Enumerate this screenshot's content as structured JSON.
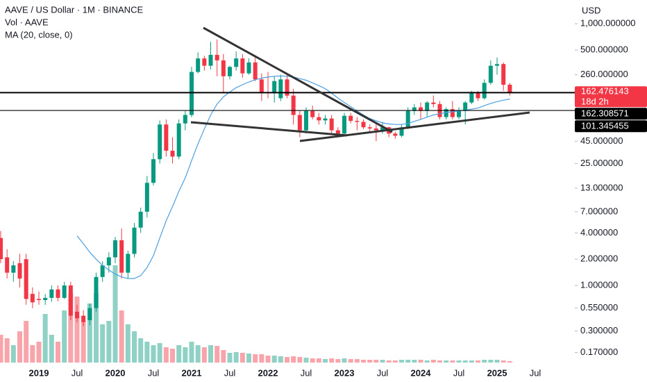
{
  "chart_data": {
    "type": "candlestick",
    "title": "AAVE / US Dollar · 1M · BINANCE",
    "indicators": [
      "Vol · AAVE",
      "MA (20, close, 0)"
    ],
    "currency": "USD",
    "log_scale": true,
    "up_color": "#089981",
    "down_color": "#f23645",
    "categories": [
      null,
      null,
      null,
      null,
      null,
      null,
      "2019",
      null,
      null,
      null,
      null,
      null,
      "Jul",
      null,
      null,
      null,
      null,
      null,
      "2020",
      null,
      null,
      null,
      null,
      null,
      "Jul",
      null,
      null,
      null,
      null,
      null,
      "2021",
      null,
      null,
      null,
      null,
      null,
      "Jul",
      null,
      null,
      null,
      null,
      null,
      "2022",
      null,
      null,
      null,
      null,
      null,
      "Jul",
      null,
      null,
      null,
      null,
      null,
      "2023",
      null,
      null,
      null,
      null,
      null,
      "Jul",
      null,
      null,
      null,
      null,
      null,
      "2024",
      null,
      null,
      null,
      null,
      null,
      "Jul",
      null,
      null,
      null,
      null,
      null,
      "2025",
      null,
      null,
      null,
      null,
      null,
      "Jul"
    ],
    "open": [
      3.5,
      2.1,
      1.4,
      1.8,
      2.0,
      0.8,
      0.7,
      0.68,
      0.72,
      0.9,
      0.72,
      1.0,
      0.5,
      0.45,
      0.4,
      0.55,
      1.25,
      1.7,
      2.1,
      3.3,
      1.4,
      2.3,
      4.6,
      7,
      15,
      28,
      70,
      35,
      30,
      72,
      90,
      280,
      400,
      330,
      440,
      380,
      250,
      320,
      400,
      270,
      360,
      230,
      165,
      160,
      140,
      230,
      150,
      90,
      60,
      100,
      85,
      78,
      82,
      60,
      55,
      88,
      77,
      75,
      65,
      63,
      60,
      65,
      55,
      52,
      65,
      100,
      110,
      100,
      125,
      120,
      85,
      105,
      85,
      100,
      125,
      160,
      140,
      210,
      330,
      345,
      200,
      null,
      null,
      null,
      null
    ],
    "high": [
      4.2,
      2.6,
      1.9,
      2.3,
      2.3,
      0.95,
      0.85,
      0.8,
      1.0,
      1.0,
      1.1,
      1.1,
      0.6,
      0.52,
      0.62,
      1.4,
      1.9,
      2.4,
      3.6,
      4.5,
      2.5,
      5.2,
      7.8,
      18,
      33,
      78,
      80,
      50,
      80,
      100,
      320,
      470,
      430,
      620,
      660,
      450,
      330,
      480,
      450,
      400,
      420,
      270,
      280,
      250,
      260,
      260,
      180,
      100,
      110,
      115,
      95,
      90,
      90,
      65,
      95,
      95,
      85,
      80,
      70,
      70,
      75,
      66,
      58,
      70,
      110,
      120,
      125,
      130,
      150,
      130,
      110,
      130,
      110,
      130,
      170,
      170,
      230,
      380,
      410,
      360,
      210,
      null,
      null,
      null,
      null
    ],
    "low": [
      1.8,
      1.2,
      1.1,
      0.95,
      0.6,
      0.55,
      0.6,
      0.6,
      0.65,
      0.66,
      0.7,
      0.4,
      0.38,
      0.34,
      0.35,
      0.5,
      1.1,
      1.4,
      1.8,
      1.2,
      1.2,
      2.1,
      4.0,
      6,
      14,
      25,
      30,
      25,
      28,
      60,
      85,
      270,
      290,
      300,
      250,
      160,
      230,
      290,
      240,
      260,
      220,
      130,
      140,
      125,
      130,
      140,
      70,
      50,
      55,
      80,
      70,
      70,
      55,
      50,
      52,
      72,
      60,
      62,
      58,
      45,
      55,
      50,
      48,
      50,
      62,
      90,
      80,
      85,
      110,
      80,
      80,
      80,
      80,
      70,
      120,
      130,
      135,
      200,
      260,
      170,
      150,
      null,
      null,
      null,
      null
    ],
    "close": [
      2.0,
      1.4,
      1.7,
      1.2,
      0.7,
      0.64,
      0.68,
      0.72,
      0.9,
      0.72,
      1.0,
      0.45,
      0.42,
      0.38,
      0.55,
      1.25,
      1.7,
      2.1,
      3.3,
      1.4,
      2.3,
      4.6,
      7.0,
      15,
      28,
      70,
      35,
      30,
      72,
      90,
      280,
      400,
      330,
      440,
      380,
      250,
      320,
      400,
      270,
      360,
      230,
      165,
      160,
      220,
      230,
      150,
      90,
      60,
      100,
      85,
      78,
      82,
      60,
      55,
      88,
      77,
      75,
      65,
      63,
      60,
      65,
      55,
      52,
      65,
      100,
      110,
      100,
      125,
      120,
      85,
      105,
      85,
      100,
      125,
      160,
      140,
      210,
      330,
      345,
      200,
      162.476143,
      null,
      null,
      null,
      null
    ],
    "volume": [
      40,
      35,
      25,
      45,
      60,
      25,
      30,
      70,
      40,
      30,
      75,
      100,
      95,
      60,
      85,
      100,
      55,
      60,
      140,
      75,
      55,
      45,
      35,
      30,
      25,
      28,
      22,
      20,
      25,
      22,
      30,
      25,
      22,
      25,
      24,
      18,
      14,
      15,
      14,
      13,
      12,
      12,
      10,
      10,
      9,
      8,
      9,
      8,
      7,
      6,
      6,
      5,
      6,
      5,
      6,
      5,
      5,
      4,
      4,
      4,
      4,
      3,
      3,
      4,
      4,
      4,
      4,
      3,
      4,
      3,
      3,
      3,
      3,
      3,
      3,
      3,
      4,
      4,
      4,
      3,
      2,
      null,
      null,
      null,
      null
    ],
    "ma": {
      "color": "#4a9fe0",
      "values": [
        null,
        null,
        null,
        null,
        null,
        null,
        null,
        null,
        null,
        null,
        null,
        null,
        3.7,
        3.0,
        2.4,
        2.0,
        1.7,
        1.5,
        1.35,
        1.25,
        1.2,
        1.2,
        1.3,
        1.6,
        2.2,
        3.5,
        5.5,
        8,
        12,
        17,
        27,
        42,
        62,
        90,
        120,
        145,
        165,
        185,
        200,
        215,
        228,
        238,
        245,
        250,
        252,
        250,
        245,
        235,
        225,
        210,
        195,
        180,
        160,
        140,
        125,
        112,
        100,
        90,
        82,
        77,
        73,
        71,
        70,
        70,
        72,
        76,
        80,
        85,
        90,
        93,
        96,
        98,
        100,
        102,
        105,
        108,
        115,
        122,
        128,
        133,
        137,
        null,
        null,
        null,
        null
      ]
    },
    "ylim": [
      0.117,
      1871
    ],
    "yticks": [
      {
        "value": 1000,
        "label": "1,000.000000"
      },
      {
        "value": 500,
        "label": "500.000000"
      },
      {
        "value": 260,
        "label": "260.000000"
      },
      {
        "value": 45,
        "label": "45.000000"
      },
      {
        "value": 25,
        "label": "25.000000"
      },
      {
        "value": 13,
        "label": "13.000000"
      },
      {
        "value": 7,
        "label": "7.000000"
      },
      {
        "value": 4,
        "label": "4.000000"
      },
      {
        "value": 2,
        "label": "2.000000"
      },
      {
        "value": 1,
        "label": "1.000000"
      },
      {
        "value": 0.55,
        "label": "0.550000"
      },
      {
        "value": 0.3,
        "label": "0.300000"
      },
      {
        "value": 0.17,
        "label": "0.170000"
      }
    ],
    "price_lines": [
      162.308571,
      101.345455
    ],
    "countdown": "18d 2h"
  }
}
